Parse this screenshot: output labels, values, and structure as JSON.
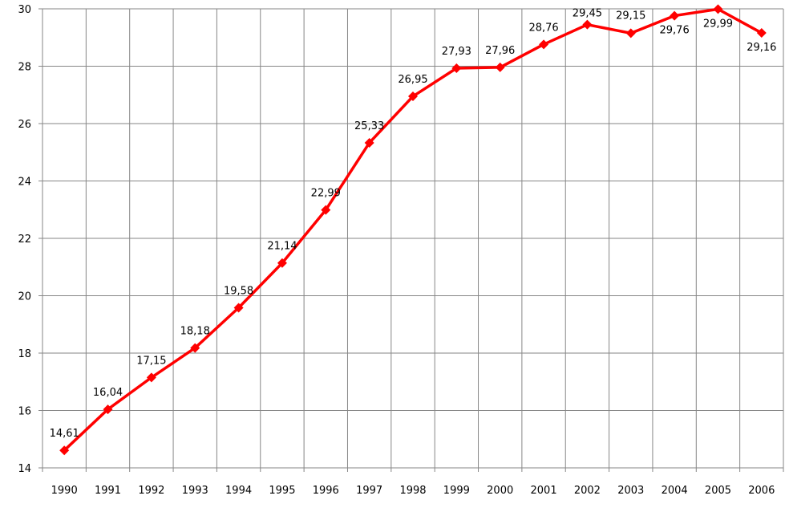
{
  "chart_data": {
    "type": "line",
    "title": "",
    "xlabel": "",
    "ylabel": "",
    "categories": [
      "1990",
      "1991",
      "1992",
      "1993",
      "1994",
      "1995",
      "1996",
      "1997",
      "1998",
      "1999",
      "2000",
      "2001",
      "2002",
      "2003",
      "2004",
      "2005",
      "2006"
    ],
    "series": [
      {
        "values": [
          14.61,
          16.04,
          17.15,
          18.18,
          19.58,
          21.14,
          22.99,
          25.33,
          26.95,
          27.93,
          27.96,
          28.76,
          29.45,
          29.15,
          29.76,
          29.99,
          29.16
        ],
        "labels": [
          "14,61",
          "16,04",
          "17,15",
          "18,18",
          "19,58",
          "21,14",
          "22,99",
          "25,33",
          "26,95",
          "27,93",
          "27,96",
          "28,76",
          "29,45",
          "29,15",
          "29,76",
          "29,99",
          "29,16"
        ],
        "color": "#ff0000",
        "marker": "diamond"
      }
    ],
    "ylim": [
      14,
      30
    ],
    "yticks": [
      14,
      16,
      18,
      20,
      22,
      24,
      26,
      28,
      30
    ],
    "grid": true,
    "legend": "none"
  }
}
